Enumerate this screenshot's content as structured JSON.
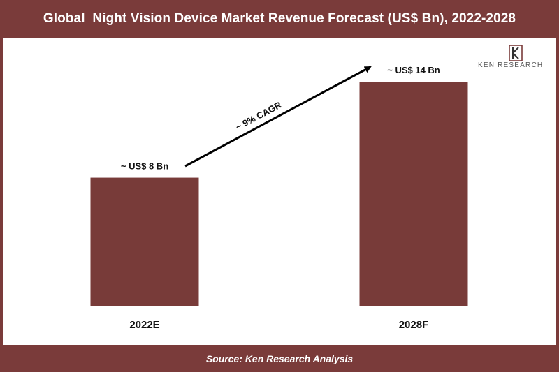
{
  "title": "Global  Night Vision Device Market Revenue Forecast (US$ Bn), 2022-2028",
  "source": "Source: Ken Research Analysis",
  "logo": {
    "text": "KEN RESEARCH",
    "icon": "ken-research-logo"
  },
  "colors": {
    "accent": "#7a3b3a",
    "bar": "#783b39",
    "text": "#111111"
  },
  "chart_data": {
    "type": "bar",
    "categories": [
      "2022E",
      "2028F"
    ],
    "values": [
      8,
      14
    ],
    "data_labels": [
      "~ US$ 8 Bn",
      "~ US$ 14 Bn"
    ],
    "annotation": "~ 9% CAGR",
    "ylim": [
      0,
      14
    ],
    "grid": false
  }
}
